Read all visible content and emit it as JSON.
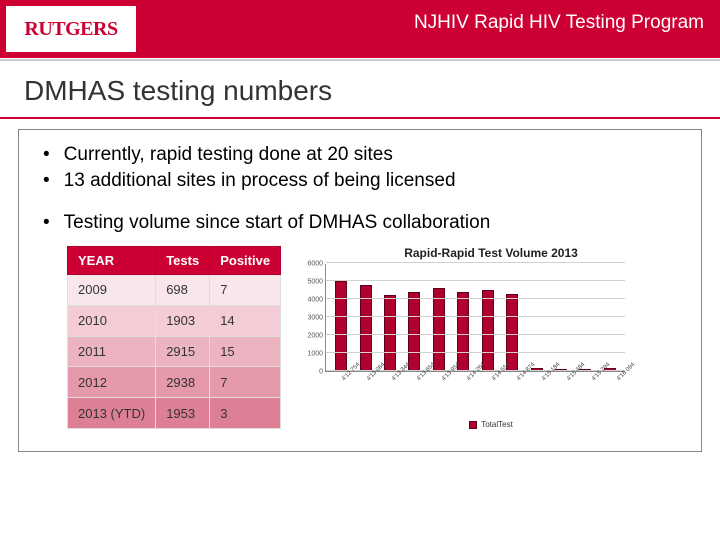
{
  "header": {
    "logo": "RUTGERS",
    "title": "NJHIV Rapid HIV Testing Program"
  },
  "slide_title": "DMHAS testing numbers",
  "bullets": [
    "Currently, rapid testing done at 20 sites",
    "13 additional sites in process of being licensed",
    "Testing volume since start of DMHAS collaboration"
  ],
  "table": {
    "columns": [
      "YEAR",
      "Tests",
      "Positive"
    ],
    "rows": [
      [
        "2009",
        "698",
        "7"
      ],
      [
        "2010",
        "1903",
        "14"
      ],
      [
        "2011",
        "2915",
        "15"
      ],
      [
        "2012",
        "2938",
        "7"
      ],
      [
        "2013 (YTD)",
        "1953",
        "3"
      ]
    ],
    "header_bg": "#cc0033",
    "row_shades": [
      "#f9e6ea",
      "#f3ccd5",
      "#ecb3c0",
      "#e599aa",
      "#de8095"
    ]
  },
  "chart": {
    "type": "bar",
    "title": "Rapid-Rapid Test Volume 2013",
    "ylim": [
      0,
      6000
    ],
    "ytick_step": 1000,
    "yticks": [
      0,
      1000,
      2000,
      3000,
      4000,
      5000,
      6000
    ],
    "grid_color": "#d0d0d0",
    "bar_color": "#b00030",
    "bar_border": "#600018",
    "background_color": "#ffffff",
    "title_fontsize": 12,
    "label_fontsize": 7,
    "categories": [
      "4'12 754",
      "4'13 064",
      "4'13 344",
      "4'13 654",
      "4'13 954",
      "4'14 264",
      "4'14 554",
      "4'14 874",
      "4'15 184",
      "4'15 484",
      "4'15 794",
      "4'16 094"
    ],
    "values": [
      5000,
      4800,
      4200,
      4400,
      4600,
      4400,
      4500,
      4300,
      150,
      130,
      120,
      140
    ],
    "legend_label": "TotalTest"
  }
}
